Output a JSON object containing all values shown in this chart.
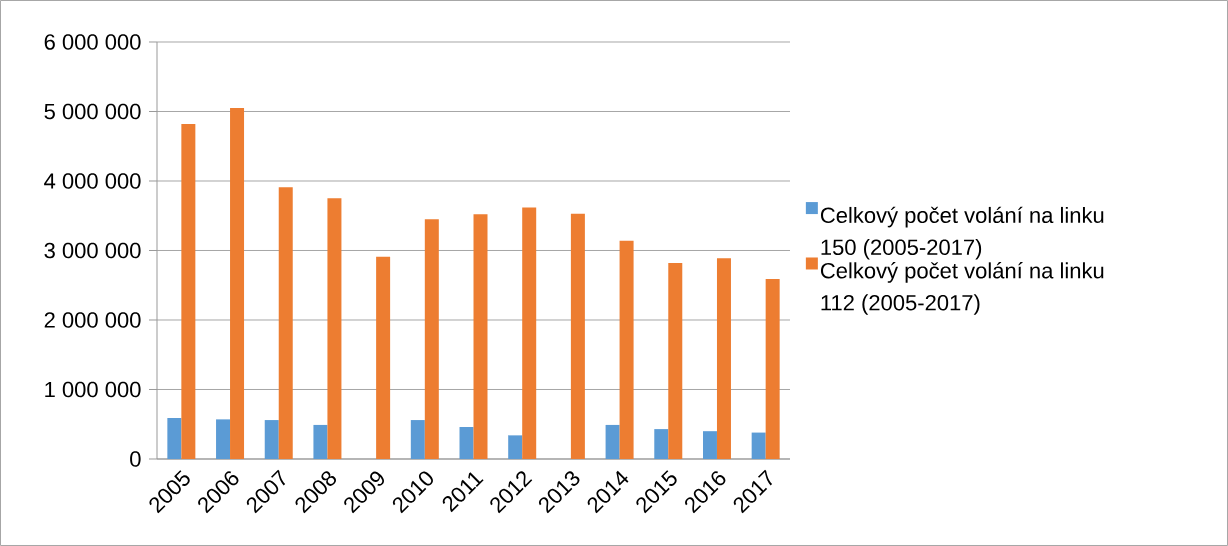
{
  "chart_data": {
    "type": "bar",
    "categories": [
      "2005",
      "2006",
      "2007",
      "2008",
      "2009",
      "2010",
      "2011",
      "2012",
      "2013",
      "2014",
      "2015",
      "2016",
      "2017"
    ],
    "series": [
      {
        "name": "Celkový počet volání na linku 150 (2005-2017)",
        "color": "#5b9bd5",
        "values": [
          590000,
          570000,
          560000,
          490000,
          null,
          560000,
          460000,
          340000,
          null,
          490000,
          430000,
          400000,
          380000
        ]
      },
      {
        "name": "Celkový počet volání na linku 112 (2005-2017)",
        "color": "#ed7d31",
        "values": [
          4820000,
          5050000,
          3910000,
          3750000,
          2910000,
          3450000,
          3520000,
          3620000,
          3530000,
          3140000,
          2820000,
          2890000,
          2590000
        ]
      }
    ],
    "ylim": [
      0,
      6000000
    ],
    "yticks": [
      {
        "value": 0,
        "label": "0"
      },
      {
        "value": 1000000,
        "label": "1 000 000"
      },
      {
        "value": 2000000,
        "label": "2 000 000"
      },
      {
        "value": 3000000,
        "label": "3 000 000"
      },
      {
        "value": 4000000,
        "label": "4 000 000"
      },
      {
        "value": 5000000,
        "label": "5 000 000"
      },
      {
        "value": 6000000,
        "label": "6 000 000"
      }
    ],
    "grid": "y",
    "legend": "right"
  }
}
